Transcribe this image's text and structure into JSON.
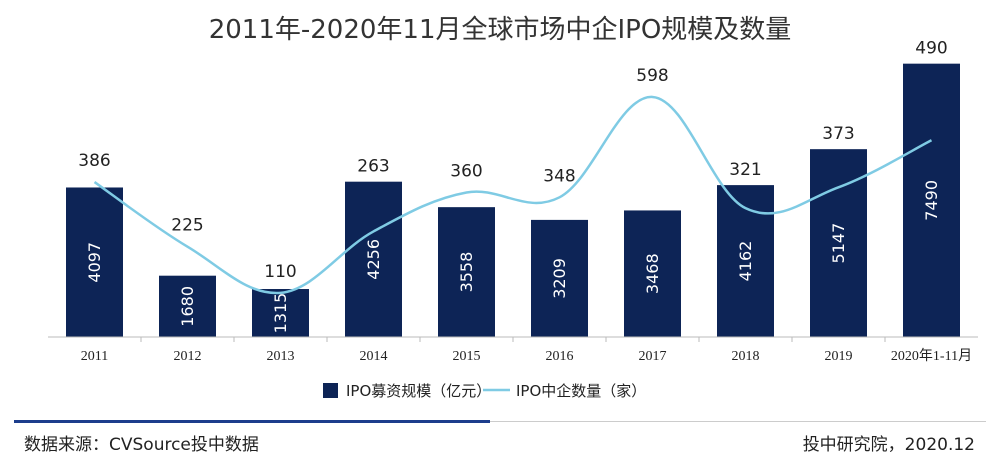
{
  "chart_data": {
    "type": "bar",
    "title": "2011年-2020年11月全球市场中企IPO规模及数量",
    "categories": [
      "2011",
      "2012",
      "2013",
      "2014",
      "2015",
      "2016",
      "2017",
      "2018",
      "2019",
      "2020年1-11月"
    ],
    "series": [
      {
        "name": "IPO募资规模（亿元）",
        "type": "bar",
        "values": [
          4097,
          1680,
          1315,
          4256,
          3558,
          3209,
          3468,
          4162,
          5147,
          7490
        ],
        "color": "#0d2456"
      },
      {
        "name": "IPO中企数量（家）",
        "type": "line",
        "values": [
          386,
          225,
          110,
          263,
          360,
          348,
          598,
          321,
          373,
          490
        ],
        "color": "#7fcbe4"
      }
    ],
    "bar_axis_range": [
      0,
      7700
    ],
    "line_axis_range": [
      0,
      700
    ],
    "grid": false,
    "legend_position": "bottom"
  },
  "footer": {
    "source": "数据来源：CVSource投中数据",
    "credit": "投中研究院，2020.12"
  },
  "colors": {
    "bar": "#0d2456",
    "line": "#7fcbe4",
    "footer_rule": "#1c3d8c"
  }
}
